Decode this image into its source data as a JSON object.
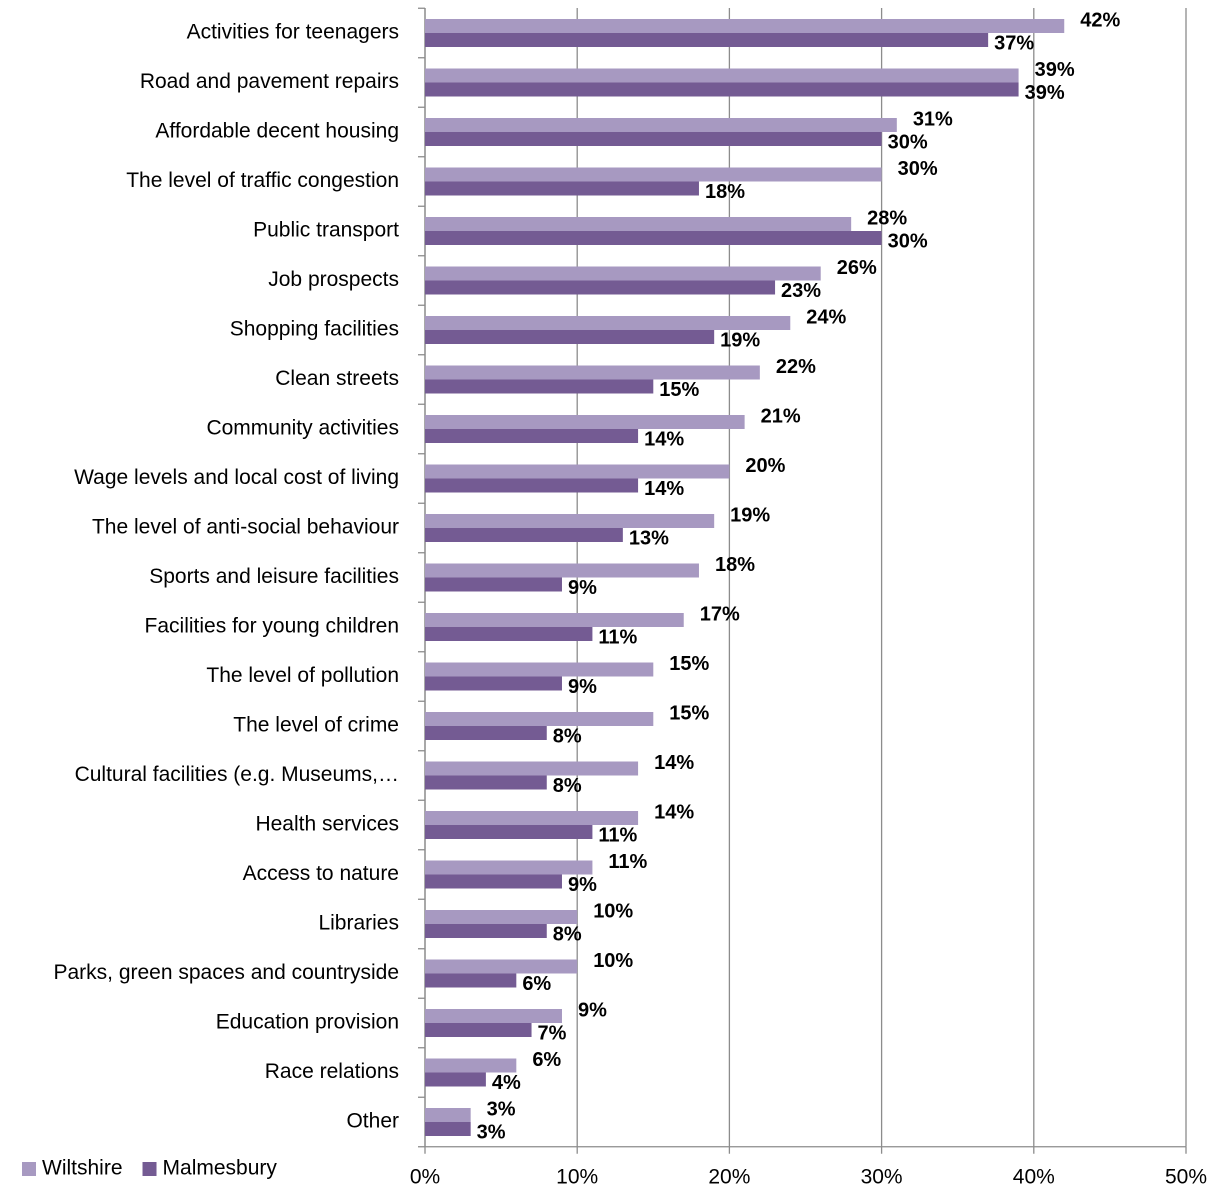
{
  "chart_data": {
    "type": "bar",
    "orientation": "horizontal",
    "categories": [
      "Activities for teenagers",
      "Road and pavement repairs",
      "Affordable decent housing",
      "The level of traffic congestion",
      "Public transport",
      "Job prospects",
      "Shopping facilities",
      "Clean streets",
      "Community activities",
      "Wage levels and local cost of living",
      "The level of anti-social behaviour",
      "Sports and leisure facilities",
      "Facilities for young children",
      "The level of pollution",
      "The level of crime",
      "Cultural facilities (e.g. Museums,…",
      "Health services",
      "Access to nature",
      "Libraries",
      "Parks, green spaces and countryside",
      "Education provision",
      "Race relations",
      "Other"
    ],
    "series": [
      {
        "name": "Wiltshire",
        "color": "#a799c1",
        "values": [
          42,
          39,
          31,
          30,
          28,
          26,
          24,
          22,
          21,
          20,
          19,
          18,
          17,
          15,
          15,
          14,
          14,
          11,
          10,
          10,
          9,
          6,
          3
        ],
        "value_labels": [
          "42%",
          "39%",
          "31%",
          "30%",
          "28%",
          "26%",
          "24%",
          "22%",
          "21%",
          "20%",
          "19%",
          "18%",
          "17%",
          "15%",
          "15%",
          "14%",
          "14%",
          "11%",
          "10%",
          "10%",
          "9%",
          "6%",
          "3%"
        ]
      },
      {
        "name": "Malmesbury",
        "color": "#745b93",
        "values": [
          37,
          39,
          30,
          18,
          30,
          23,
          19,
          15,
          14,
          14,
          13,
          9,
          11,
          9,
          8,
          8,
          11,
          9,
          8,
          6,
          7,
          4,
          3
        ],
        "value_labels": [
          "37%",
          "39%",
          "30%",
          "18%",
          "30%",
          "23%",
          "19%",
          "15%",
          "14%",
          "14%",
          "13%",
          "9%",
          "11%",
          "9%",
          "8%",
          "8%",
          "11%",
          "9%",
          "8%",
          "6%",
          "7%",
          "4%",
          "3%"
        ]
      }
    ],
    "xlim": [
      0,
      50
    ],
    "xticks": [
      {
        "value": 0,
        "label": "0%"
      },
      {
        "value": 10,
        "label": "10%"
      },
      {
        "value": 20,
        "label": "20%"
      },
      {
        "value": 30,
        "label": "30%"
      },
      {
        "value": 40,
        "label": "40%"
      },
      {
        "value": 50,
        "label": "50%"
      }
    ],
    "grid": true,
    "legend": "bottom-left"
  }
}
